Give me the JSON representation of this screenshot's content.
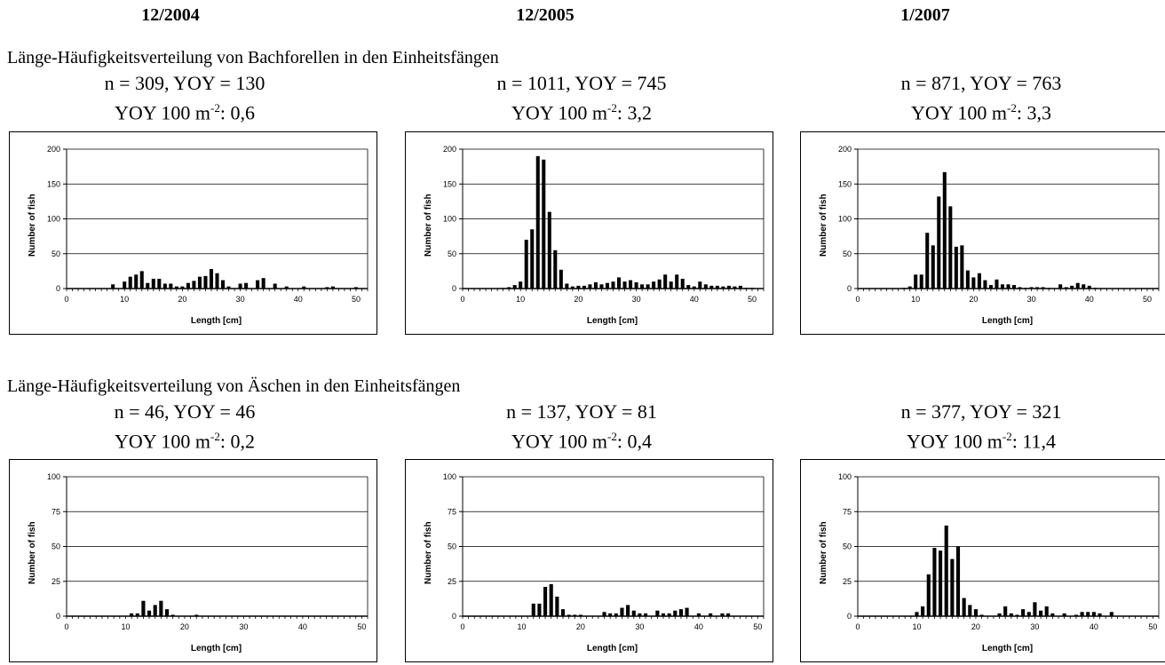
{
  "dates": [
    "12/2004",
    "12/2005",
    "1/2007"
  ],
  "sections": [
    "Länge-Häufigkeitsverteilung von Bachforellen in den Einheitsfängen",
    "Länge-Häufigkeitsverteilung von Äschen in den Einheitsfängen"
  ],
  "stats": [
    {
      "line1": "n = 309, YOY = 130",
      "yoy_prefix": "YOY 100 m",
      "yoy_exp": "-2",
      "yoy_value": ": 0,6"
    },
    {
      "line1": "n = 1011, YOY = 745",
      "yoy_prefix": "YOY 100 m",
      "yoy_exp": "-2",
      "yoy_value": ": 3,2"
    },
    {
      "line1": "n = 871, YOY = 763",
      "yoy_prefix": "YOY 100 m",
      "yoy_exp": "-2",
      "yoy_value": ": 3,3"
    },
    {
      "line1": "n = 46, YOY = 46",
      "yoy_prefix": "YOY 100 m",
      "yoy_exp": "-2",
      "yoy_value": ": 0,2"
    },
    {
      "line1": "n = 137, YOY = 81",
      "yoy_prefix": "YOY 100 m",
      "yoy_exp": "-2",
      "yoy_value": ": 0,4"
    },
    {
      "line1": "n = 377, YOY = 321",
      "yoy_prefix": "YOY 100 m",
      "yoy_exp": "-2",
      "yoy_value": ": 11,4"
    }
  ],
  "chart_data": [
    {
      "type": "bar",
      "xlabel": "Length [cm]",
      "ylabel": "Number of fish",
      "xlim": [
        0,
        52
      ],
      "ylim": [
        0,
        200
      ],
      "xticks": [
        0,
        10,
        20,
        30,
        40,
        50
      ],
      "yticks": [
        0,
        50,
        100,
        150,
        200
      ],
      "grid": true,
      "x": [
        8,
        10,
        11,
        12,
        13,
        14,
        15,
        16,
        17,
        18,
        19,
        20,
        21,
        22,
        23,
        24,
        25,
        26,
        27,
        28,
        30,
        31,
        33,
        34,
        36,
        38,
        41,
        45,
        46,
        50
      ],
      "y": [
        6,
        10,
        17,
        20,
        25,
        8,
        14,
        14,
        7,
        7,
        3,
        3,
        8,
        11,
        17,
        18,
        28,
        22,
        12,
        3,
        7,
        8,
        12,
        15,
        7,
        3,
        3,
        2,
        3,
        2
      ]
    },
    {
      "type": "bar",
      "xlabel": "Length [cm]",
      "ylabel": "Number of fish",
      "xlim": [
        0,
        52
      ],
      "ylim": [
        0,
        200
      ],
      "xticks": [
        0,
        10,
        20,
        30,
        40,
        50
      ],
      "yticks": [
        0,
        50,
        100,
        150,
        200
      ],
      "grid": true,
      "x": [
        7,
        8,
        9,
        10,
        11,
        12,
        13,
        14,
        15,
        16,
        17,
        18,
        19,
        20,
        21,
        22,
        23,
        24,
        25,
        26,
        27,
        28,
        29,
        30,
        31,
        32,
        33,
        34,
        35,
        36,
        37,
        38,
        39,
        40,
        41,
        42,
        43,
        44,
        45,
        46,
        47,
        48,
        49,
        50
      ],
      "y": [
        1,
        2,
        5,
        10,
        70,
        85,
        190,
        185,
        110,
        55,
        27,
        7,
        3,
        4,
        4,
        6,
        9,
        6,
        8,
        10,
        16,
        10,
        12,
        9,
        6,
        6,
        10,
        13,
        20,
        10,
        20,
        14,
        5,
        3,
        10,
        6,
        4,
        4,
        3,
        4,
        3,
        4,
        1,
        1
      ]
    },
    {
      "type": "bar",
      "xlabel": "Length [cm]",
      "ylabel": "Number of fish",
      "xlim": [
        0,
        52
      ],
      "ylim": [
        0,
        200
      ],
      "xticks": [
        0,
        10,
        20,
        30,
        40,
        50
      ],
      "yticks": [
        0,
        50,
        100,
        150,
        200
      ],
      "grid": true,
      "x": [
        8,
        9,
        10,
        11,
        12,
        13,
        14,
        15,
        16,
        17,
        18,
        19,
        20,
        21,
        22,
        23,
        24,
        25,
        26,
        27,
        28,
        29,
        30,
        31,
        32,
        33,
        35,
        36,
        37,
        38,
        39,
        40,
        41
      ],
      "y": [
        1,
        3,
        20,
        20,
        80,
        62,
        132,
        167,
        118,
        60,
        62,
        26,
        16,
        22,
        12,
        5,
        13,
        6,
        6,
        5,
        2,
        1,
        2,
        2,
        2,
        1,
        6,
        2,
        4,
        8,
        6,
        4,
        1
      ]
    },
    {
      "type": "bar",
      "xlabel": "Length [cm]",
      "ylabel": "Number of fish",
      "xlim": [
        0,
        51
      ],
      "ylim": [
        0,
        100
      ],
      "xticks": [
        0,
        10,
        20,
        30,
        40,
        50
      ],
      "yticks": [
        0,
        25,
        50,
        75,
        100
      ],
      "grid": true,
      "x": [
        11,
        12,
        13,
        14,
        15,
        16,
        17,
        18,
        22
      ],
      "y": [
        2,
        2,
        11,
        4,
        8,
        11,
        5,
        1,
        1
      ]
    },
    {
      "type": "bar",
      "xlabel": "Length [cm]",
      "ylabel": "Number of fish",
      "xlim": [
        0,
        51
      ],
      "ylim": [
        0,
        100
      ],
      "xticks": [
        0,
        10,
        20,
        30,
        40,
        50
      ],
      "yticks": [
        0,
        25,
        50,
        75,
        100
      ],
      "grid": true,
      "x": [
        12,
        13,
        14,
        15,
        16,
        17,
        18,
        19,
        20,
        24,
        25,
        26,
        27,
        28,
        29,
        30,
        31,
        33,
        34,
        35,
        36,
        37,
        38,
        40,
        42,
        44,
        45
      ],
      "y": [
        9,
        9,
        21,
        23,
        14,
        5,
        1,
        1,
        1,
        3,
        2,
        2,
        6,
        8,
        4,
        2,
        2,
        4,
        2,
        2,
        4,
        5,
        6,
        2,
        2,
        2,
        2
      ]
    },
    {
      "type": "bar",
      "xlabel": "Length [cm]",
      "ylabel": "Number of fish",
      "xlim": [
        0,
        51
      ],
      "ylim": [
        0,
        100
      ],
      "xticks": [
        0,
        10,
        20,
        30,
        40,
        50
      ],
      "yticks": [
        0,
        25,
        50,
        75,
        100
      ],
      "grid": true,
      "x": [
        10,
        11,
        12,
        13,
        14,
        15,
        16,
        17,
        18,
        19,
        20,
        21,
        24,
        25,
        26,
        27,
        28,
        29,
        30,
        31,
        32,
        33,
        35,
        37,
        38,
        39,
        40,
        41,
        43
      ],
      "y": [
        3,
        7,
        30,
        49,
        47,
        65,
        41,
        50,
        13,
        8,
        5,
        1,
        2,
        7,
        2,
        1,
        5,
        3,
        10,
        4,
        7,
        2,
        2,
        1,
        3,
        3,
        3,
        2,
        3
      ]
    }
  ]
}
